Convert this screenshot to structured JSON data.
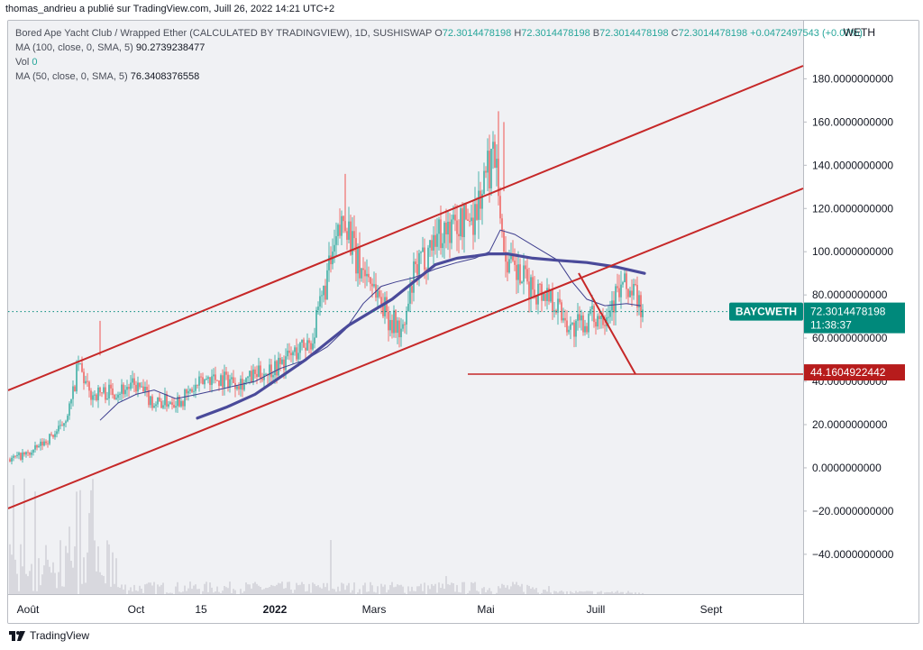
{
  "header": {
    "publish_line": "thomas_andrieu a publié sur TradingView.com, Juill 26, 2022 14:21 UTC+2"
  },
  "legend": {
    "symbol_line": "Bored Ape Yacht Club / Wrapped Ether (CALCULATED BY TRADINGVIEW), 1D, SUSHISWAP",
    "ohlc": [
      {
        "label": "O",
        "value": "72.3014478198"
      },
      {
        "label": "H",
        "value": "72.3014478198"
      },
      {
        "label": "B",
        "value": "72.3014478198"
      },
      {
        "label": "C",
        "value": "72.3014478198"
      }
    ],
    "change": "+0.0472497543 (+0.07%)",
    "ma100_label": "MA (100, close, 0, SMA, 5)",
    "ma100_value": "90.2739238477",
    "vol_label": "Vol",
    "vol_value": "0",
    "ma50_label": "MA (50, close, 0, SMA, 5)",
    "ma50_value": "76.3408376558"
  },
  "price_axis": {
    "title": "WETH",
    "ticks": [
      {
        "label": "180.0000000000",
        "value": 180
      },
      {
        "label": "160.0000000000",
        "value": 160
      },
      {
        "label": "140.0000000000",
        "value": 140
      },
      {
        "label": "120.0000000000",
        "value": 120
      },
      {
        "label": "100.0000000000",
        "value": 100
      },
      {
        "label": "80.0000000000",
        "value": 80
      },
      {
        "label": "60.0000000000",
        "value": 60
      },
      {
        "label": "40.0000000000",
        "value": 40
      },
      {
        "label": "20.0000000000",
        "value": 20
      },
      {
        "label": "0.0000000000",
        "value": 0
      },
      {
        "label": "−20.0000000000",
        "value": -20
      },
      {
        "label": "−40.0000000000",
        "value": -40
      }
    ]
  },
  "time_axis": {
    "ticks": [
      {
        "label": "Août",
        "bold": false,
        "day": 10
      },
      {
        "label": "Oct",
        "bold": false,
        "day": 70
      },
      {
        "label": "15",
        "bold": false,
        "day": 106
      },
      {
        "label": "2022",
        "bold": true,
        "day": 147
      },
      {
        "label": "Mars",
        "bold": false,
        "day": 202
      },
      {
        "label": "Mai",
        "bold": false,
        "day": 264
      },
      {
        "label": "Juill",
        "bold": false,
        "day": 325
      },
      {
        "label": "Sept",
        "bold": false,
        "day": 389
      }
    ]
  },
  "price_tag": {
    "symbol": "BAYCWETH",
    "price": "72.3014478198",
    "countdown": "11:38:37",
    "value": 72.3,
    "color": "#00897b"
  },
  "level_tag": {
    "price": "44.1604922442",
    "value": 44.16,
    "color": "#b71c1c"
  },
  "colors": {
    "up": "#26a69a",
    "down": "#ef5350",
    "trendline": "#c62828",
    "ma50": "#3f3f8f",
    "ma100": "#4a4a9a",
    "background": "#f0f1f4",
    "volume": "#c8c9cf"
  },
  "footer": {
    "brand": "TradingView"
  }
}
